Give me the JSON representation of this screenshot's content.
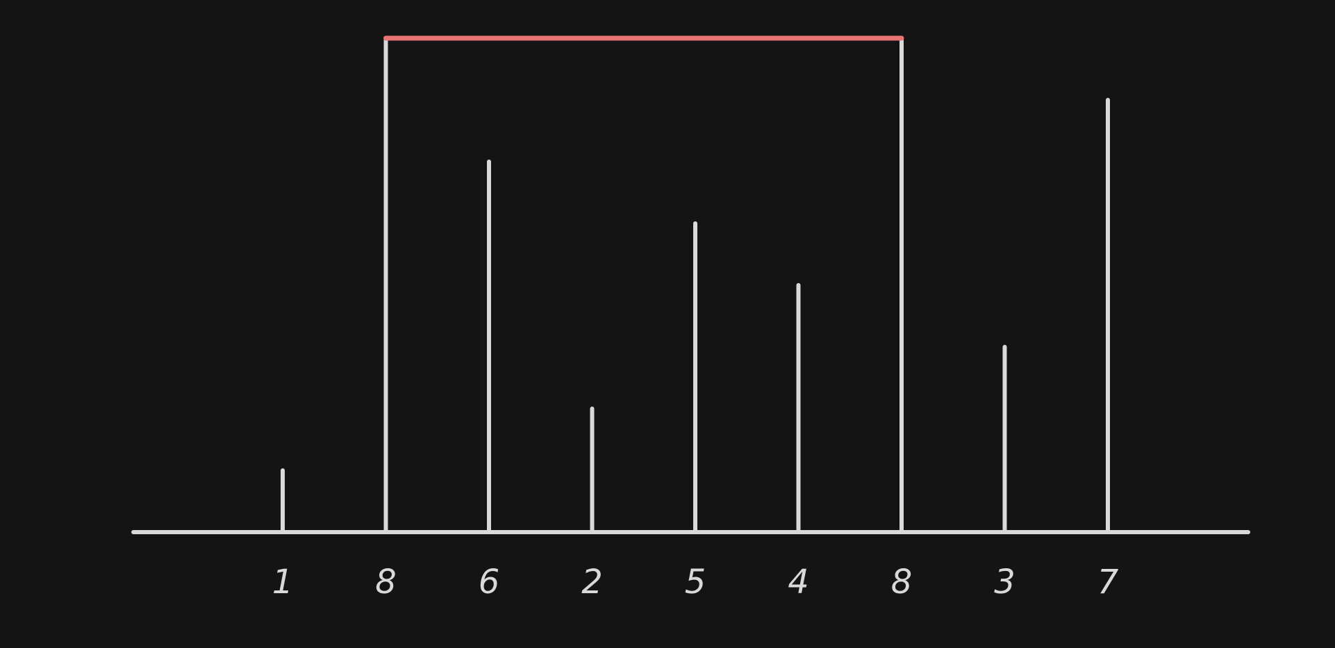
{
  "diagram": {
    "title": "",
    "colors": {
      "background": "#141414",
      "lines": "#d9d9d9",
      "highlight": "#e87474"
    },
    "bars": [
      {
        "label": "1",
        "height": 1
      },
      {
        "label": "8",
        "height": 8
      },
      {
        "label": "6",
        "height": 6
      },
      {
        "label": "2",
        "height": 2
      },
      {
        "label": "5",
        "height": 5
      },
      {
        "label": "4",
        "height": 4
      },
      {
        "label": "8",
        "height": 8
      },
      {
        "label": "3",
        "height": 3
      },
      {
        "label": "7",
        "height": 7
      }
    ],
    "highlight": {
      "from_index": 1,
      "to_index": 6,
      "description": ""
    }
  }
}
